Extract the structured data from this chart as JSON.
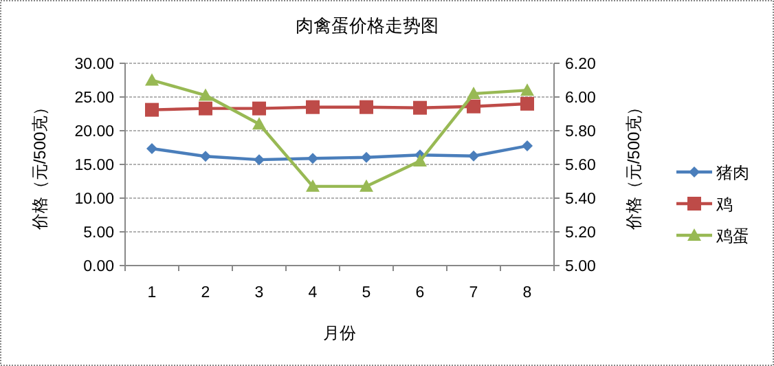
{
  "chart_data": {
    "type": "line",
    "title": "肉禽蛋价格走势图",
    "xlabel": "月份",
    "ylabel": "价格（元/500克）",
    "y2label": "价格（元/500克）",
    "categories": [
      "1",
      "2",
      "3",
      "4",
      "5",
      "6",
      "7",
      "8"
    ],
    "series": [
      {
        "name": "猪肉",
        "color": "#4a7ebb",
        "marker": "diamond",
        "values": [
          17.35,
          16.2,
          15.7,
          15.9,
          16.05,
          16.4,
          16.25,
          17.75
        ]
      },
      {
        "name": "鸡",
        "color": "#be4b48",
        "marker": "square",
        "values": [
          23.1,
          23.3,
          23.3,
          23.5,
          23.5,
          23.4,
          23.6,
          24.0
        ]
      },
      {
        "name": "鸡蛋",
        "color": "#98b954",
        "marker": "triangle",
        "axis": "y2",
        "values": [
          6.1,
          6.01,
          5.84,
          5.47,
          5.47,
          5.62,
          6.02,
          6.04
        ]
      }
    ],
    "ylim": [
      0,
      30
    ],
    "yticks": [
      {
        "value": 0,
        "label": "0.00"
      },
      {
        "value": 5,
        "label": "5.00"
      },
      {
        "value": 10,
        "label": "10.00"
      },
      {
        "value": 15,
        "label": "15.00"
      },
      {
        "value": 20,
        "label": "20.00"
      },
      {
        "value": 25,
        "label": "25.00"
      },
      {
        "value": 30,
        "label": "30.00"
      }
    ],
    "y2lim": [
      5,
      6.2
    ],
    "y2ticks": [
      {
        "value": 5,
        "label": "5.00"
      },
      {
        "value": 5.2,
        "label": "5.20"
      },
      {
        "value": 5.4,
        "label": "5.40"
      },
      {
        "value": 5.6,
        "label": "5.60"
      },
      {
        "value": 5.8,
        "label": "5.80"
      },
      {
        "value": 6.0,
        "label": "6.00"
      },
      {
        "value": 6.2,
        "label": "6.20"
      }
    ],
    "grid": "y",
    "legend": "right"
  }
}
